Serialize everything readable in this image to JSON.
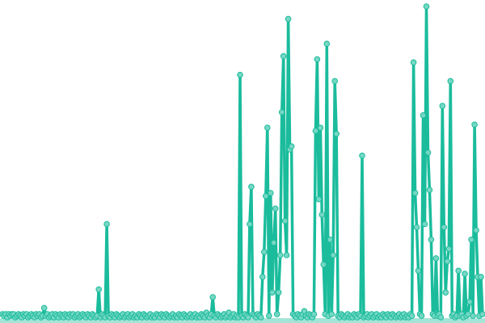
{
  "chart_data": {
    "type": "line",
    "title": "",
    "xlabel": "",
    "ylabel": "",
    "axes_visible": false,
    "grid": false,
    "legend": "none",
    "markers": true,
    "ylim": [
      0,
      100
    ],
    "colors": {
      "line": "#1abc9c",
      "marker_fill": "#76d7c4",
      "baseline_fill": "#a3e4d7"
    },
    "series": [
      {
        "values": [
          1,
          0.5,
          1,
          0,
          1,
          0.5,
          1,
          1,
          0,
          0.5,
          1,
          0.5,
          0,
          1,
          0.5,
          1,
          0,
          0.5,
          1,
          0.5,
          0,
          1,
          0.5,
          1,
          0,
          0.5,
          3,
          0.5,
          1,
          0,
          0.5,
          1,
          0,
          1,
          0.5,
          0,
          1,
          0.5,
          0,
          1,
          0.5,
          0,
          1,
          0.5,
          1,
          0,
          0.5,
          1,
          0,
          0.5,
          1,
          0.5,
          0,
          1,
          0.5,
          0,
          1,
          0.5,
          0,
          0.5,
          9,
          0,
          1,
          0.5,
          0,
          30,
          0.5,
          0,
          1,
          0.5,
          0,
          1,
          0.5,
          0,
          0.5,
          1,
          0,
          0.5,
          1,
          0,
          0.5,
          1,
          0,
          0.5,
          0,
          1,
          0.5,
          0,
          1,
          0.5,
          0,
          0.5,
          1,
          0,
          0.5,
          0,
          1,
          0.5,
          0,
          1,
          0.5,
          0,
          1,
          0.5,
          0,
          0.5,
          1,
          0,
          0.5,
          0,
          1,
          0.5,
          0,
          1,
          0.5,
          0,
          0.5,
          1,
          0,
          0.5,
          1,
          0,
          0.5,
          0,
          1,
          0.5,
          0,
          1.5,
          0.5,
          0,
          1,
          6.5,
          0.5,
          0,
          1,
          0.5,
          0,
          0.5,
          1,
          0,
          0.5,
          1.5,
          0,
          0.5,
          1,
          0,
          0.5,
          0,
          78,
          0.5,
          0,
          1,
          0.5,
          0,
          30,
          42,
          1,
          0.5,
          0,
          1,
          0.5,
          0,
          13,
          21,
          39,
          61,
          0.5,
          40,
          8,
          24,
          35,
          1,
          8,
          20,
          66,
          84,
          31,
          20,
          96,
          54,
          55,
          1,
          0.5,
          0,
          1,
          0.5,
          0,
          1,
          2,
          0.5,
          0,
          1,
          0.5,
          0,
          1,
          60,
          83,
          38,
          61,
          33,
          17,
          1,
          88,
          0.5,
          25,
          1,
          20,
          76,
          59,
          0.5,
          0,
          1,
          0.5,
          0,
          0.5,
          1,
          0,
          0.5,
          0,
          1,
          0.5,
          0,
          1,
          0.5,
          52,
          0,
          0.5,
          1,
          0,
          0.5,
          1,
          0,
          0.5,
          1,
          0,
          0.5,
          0,
          1,
          0.5,
          0,
          1,
          0.5,
          0,
          1,
          0.5,
          0,
          0.5,
          1,
          0,
          0.5,
          1,
          0,
          0.5,
          0,
          1,
          0.5,
          82,
          40,
          29,
          15,
          1,
          0.5,
          65,
          30,
          100,
          53,
          41,
          25,
          1,
          0.5,
          19,
          0.5,
          1,
          0,
          68,
          29,
          8,
          18,
          22,
          76,
          0.5,
          1,
          0,
          0.5,
          15,
          0.5,
          1,
          0,
          14,
          0.5,
          1,
          5,
          25,
          0.5,
          62,
          28,
          13,
          0.5,
          13,
          1
        ]
      }
    ]
  }
}
